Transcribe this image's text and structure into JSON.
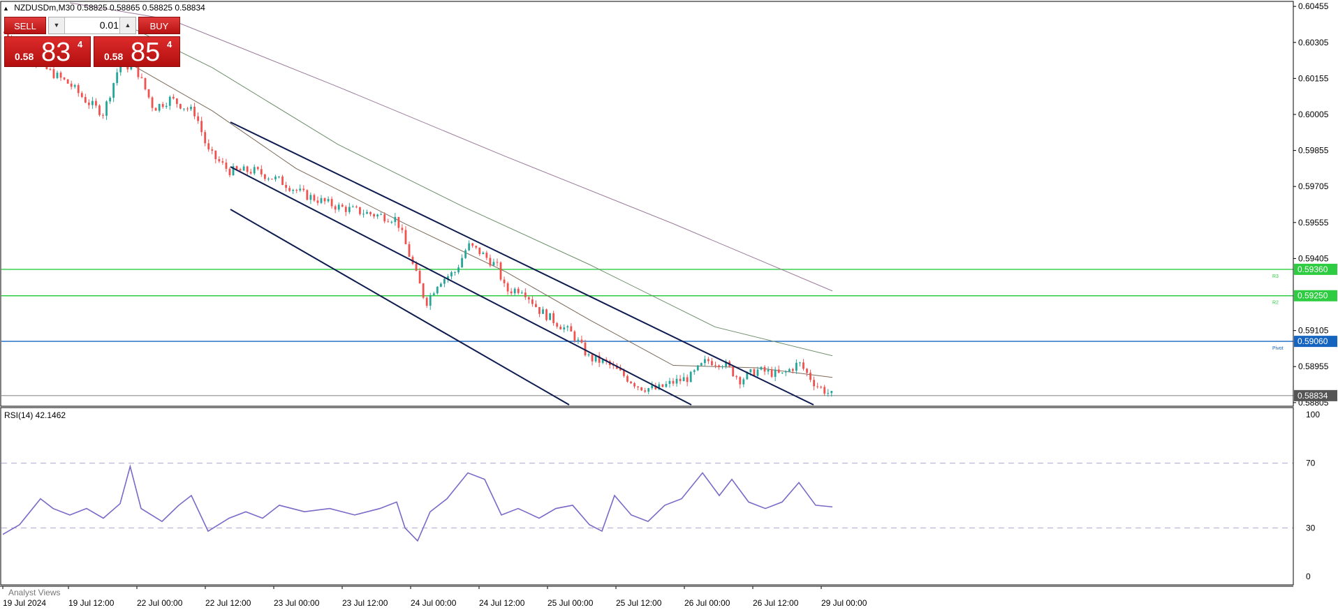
{
  "window": {
    "symbol_title": "NZDUSDm,M30",
    "ohlc": "0.58825 0.58865 0.58825 0.58834"
  },
  "trade_panel": {
    "sell_label": "SELL",
    "buy_label": "BUY",
    "lot_value": "0.01",
    "sell_price": {
      "prefix": "0.58",
      "big": "83",
      "sup": "4"
    },
    "buy_price": {
      "prefix": "0.58",
      "big": "85",
      "sup": "4"
    }
  },
  "price_axis": {
    "ticks": [
      "0.60455",
      "0.60305",
      "0.60155",
      "0.60005",
      "0.59855",
      "0.59705",
      "0.59555",
      "0.59405",
      "0.59105",
      "0.58955",
      "0.58805"
    ],
    "ylim": [
      0.5879,
      0.6047
    ]
  },
  "levels": [
    {
      "price": 0.5936,
      "label": "0.59360",
      "color": "#2ecc40",
      "tag": "R3"
    },
    {
      "price": 0.5925,
      "label": "0.59250",
      "color": "#2ecc40",
      "tag": "R2"
    },
    {
      "price": 0.5906,
      "label": "0.59060",
      "color": "#1565c0",
      "tag": "Pivot"
    },
    {
      "price": 0.58834,
      "label": "0.58834",
      "color": "#555555",
      "tag": ""
    }
  ],
  "rsi": {
    "label": "RSI(14) 42.1462",
    "ticks": [
      "100",
      "70",
      "30",
      "0"
    ],
    "overbought": 70,
    "oversold": 30
  },
  "time_axis": {
    "labels": [
      "19 Jul 2024",
      "19 Jul 12:00",
      "22 Jul 00:00",
      "22 Jul 12:00",
      "23 Jul 00:00",
      "23 Jul 12:00",
      "24 Jul 00:00",
      "24 Jul 12:00",
      "25 Jul 00:00",
      "25 Jul 12:00",
      "26 Jul 00:00",
      "26 Jul 12:00",
      "29 Jul 00:00"
    ]
  },
  "analyst_tab": "Analyst Views",
  "colors": {
    "bull": "#26a69a",
    "bear": "#ef5350",
    "channel": "#0d1b4f",
    "rsi_line": "#7b68c7",
    "ma_fast": "#7a6a5a",
    "ma_mid": "#6b8f6b",
    "ma_slow": "#9b7a9b"
  },
  "chart_data": {
    "type": "candlestick",
    "symbol": "NZDUSDm",
    "timeframe": "M30",
    "current_price": 0.58834,
    "close_path_approx": [
      [
        0,
        0.6035
      ],
      [
        40,
        0.6022
      ],
      [
        80,
        0.6013
      ],
      [
        100,
        0.6006
      ],
      [
        120,
        0.6001
      ],
      [
        140,
        0.6022
      ],
      [
        160,
        0.6019
      ],
      [
        180,
        0.6003
      ],
      [
        200,
        0.6007
      ],
      [
        230,
        0.6001
      ],
      [
        245,
        0.5985
      ],
      [
        270,
        0.5977
      ],
      [
        300,
        0.5977
      ],
      [
        330,
        0.5973
      ],
      [
        360,
        0.5967
      ],
      [
        400,
        0.5962
      ],
      [
        440,
        0.5959
      ],
      [
        470,
        0.5957
      ],
      [
        490,
        0.5937
      ],
      [
        505,
        0.5922
      ],
      [
        520,
        0.5931
      ],
      [
        540,
        0.5935
      ],
      [
        555,
        0.5946
      ],
      [
        570,
        0.5943
      ],
      [
        590,
        0.5937
      ],
      [
        600,
        0.5927
      ],
      [
        620,
        0.5928
      ],
      [
        640,
        0.5919
      ],
      [
        660,
        0.5914
      ],
      [
        680,
        0.5909
      ],
      [
        700,
        0.5899
      ],
      [
        720,
        0.5897
      ],
      [
        740,
        0.5892
      ],
      [
        760,
        0.5887
      ],
      [
        780,
        0.5886
      ],
      [
        800,
        0.5889
      ],
      [
        820,
        0.5891
      ],
      [
        840,
        0.5898
      ],
      [
        860,
        0.5897
      ],
      [
        880,
        0.589
      ],
      [
        900,
        0.5894
      ],
      [
        930,
        0.5892
      ],
      [
        950,
        0.5897
      ],
      [
        970,
        0.5888
      ],
      [
        990,
        0.58834
      ]
    ],
    "rsi_series_approx": [
      [
        0,
        26
      ],
      [
        20,
        32
      ],
      [
        45,
        48
      ],
      [
        60,
        42
      ],
      [
        80,
        38
      ],
      [
        100,
        42
      ],
      [
        120,
        36
      ],
      [
        140,
        45
      ],
      [
        152,
        68
      ],
      [
        165,
        42
      ],
      [
        190,
        34
      ],
      [
        210,
        44
      ],
      [
        225,
        50
      ],
      [
        245,
        28
      ],
      [
        270,
        36
      ],
      [
        290,
        40
      ],
      [
        310,
        36
      ],
      [
        330,
        44
      ],
      [
        360,
        40
      ],
      [
        390,
        42
      ],
      [
        420,
        38
      ],
      [
        450,
        42
      ],
      [
        470,
        46
      ],
      [
        480,
        30
      ],
      [
        495,
        22
      ],
      [
        510,
        40
      ],
      [
        530,
        48
      ],
      [
        555,
        64
      ],
      [
        575,
        60
      ],
      [
        595,
        38
      ],
      [
        615,
        42
      ],
      [
        640,
        36
      ],
      [
        660,
        42
      ],
      [
        680,
        44
      ],
      [
        700,
        32
      ],
      [
        715,
        28
      ],
      [
        730,
        50
      ],
      [
        750,
        38
      ],
      [
        770,
        34
      ],
      [
        790,
        44
      ],
      [
        810,
        48
      ],
      [
        835,
        64
      ],
      [
        855,
        50
      ],
      [
        870,
        60
      ],
      [
        890,
        46
      ],
      [
        910,
        42
      ],
      [
        930,
        46
      ],
      [
        950,
        58
      ],
      [
        970,
        44
      ],
      [
        990,
        43
      ]
    ]
  }
}
